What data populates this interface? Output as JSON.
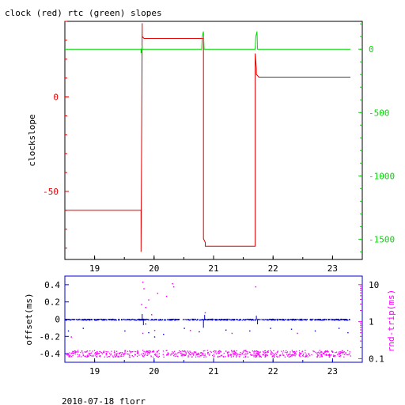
{
  "title": "clock (red) rtc (green) slopes",
  "footer": "2010-07-18 florr",
  "colors": {
    "clock": "#e00000",
    "rtc": "#00dd00",
    "offset": "#0000cc",
    "rndtrip": "#ff00ff",
    "frame": "#000000"
  },
  "chart_data": [
    {
      "type": "line",
      "title": "clock (red) rtc (green) slopes",
      "xlim": [
        18.5,
        23.5
      ],
      "xticks": [
        19,
        20,
        21,
        22,
        23
      ],
      "xticklabels": [
        "19",
        "20",
        "21",
        "22",
        "23"
      ],
      "ylabel": "clockslope",
      "ylim": [
        -86,
        40
      ],
      "yticks": [
        0,
        -50
      ],
      "yticklabels": [
        "0",
        "-50"
      ],
      "y2lim": [
        -1660,
        220
      ],
      "y2ticks": [
        0,
        -500,
        -1000,
        -1500
      ],
      "y2ticklabels": [
        "0",
        "-500",
        "-1000",
        "-1500"
      ],
      "series": [
        {
          "name": "clock",
          "axis": "left",
          "color": "#e00000",
          "x": [
            18.5,
            19.78,
            19.78,
            19.8,
            19.8,
            19.83,
            20.83,
            20.83,
            20.86,
            20.86,
            20.9,
            21.5,
            21.7,
            21.7,
            21.72,
            21.72,
            21.76,
            22.5,
            23.3
          ],
          "y": [
            -60,
            -60,
            -82,
            39,
            32,
            31,
            31,
            -75,
            -77,
            -79,
            -79,
            -79,
            -79,
            23,
            15,
            12,
            10.5,
            10.5,
            10.5
          ]
        },
        {
          "name": "rtc",
          "axis": "right",
          "color": "#00dd00",
          "x": [
            18.5,
            19.78,
            19.78,
            19.8,
            19.8,
            20.8,
            20.81,
            20.83,
            20.84,
            21.7,
            21.71,
            21.73,
            21.74,
            23.3
          ],
          "y": [
            0,
            0,
            -30,
            30,
            0,
            0,
            100,
            140,
            0,
            0,
            100,
            140,
            0,
            0
          ]
        }
      ]
    },
    {
      "type": "scatter",
      "xlim": [
        18.5,
        23.5
      ],
      "xticks": [
        19,
        20,
        21,
        22,
        23
      ],
      "xticklabels": [
        "19",
        "20",
        "21",
        "22",
        "23"
      ],
      "ylabel": "offset(ms)",
      "ylim": [
        -0.5,
        0.5
      ],
      "yticks": [
        0.4,
        0.2,
        0,
        -0.2,
        -0.4
      ],
      "yticklabels": [
        "0.4",
        "0.2",
        "0",
        "-0.2",
        "-0.4"
      ],
      "y2label": "rnd-trip(ms)",
      "y2scale": "log",
      "y2lim": [
        0.08,
        17
      ],
      "y2ticks": [
        10,
        1,
        0.1
      ],
      "y2ticklabels": [
        "10",
        "1",
        "0.1"
      ],
      "series": [
        {
          "name": "offset",
          "axis": "left",
          "color": "#0000cc",
          "x_range": [
            18.5,
            23.3
          ],
          "baseline": 0,
          "spikes": [
            {
              "x": 19.8,
              "y": 0.06
            },
            {
              "x": 19.82,
              "y": -0.07
            },
            {
              "x": 20.83,
              "y": -0.1
            },
            {
              "x": 20.85,
              "y": 0.05
            },
            {
              "x": 21.72,
              "y": 0.04
            },
            {
              "x": 21.74,
              "y": -0.06
            }
          ],
          "outliers": [
            {
              "x": 18.55,
              "y": -0.13
            },
            {
              "x": 18.8,
              "y": -0.1
            },
            {
              "x": 19.5,
              "y": -0.13
            },
            {
              "x": 19.85,
              "y": -0.05
            },
            {
              "x": 19.9,
              "y": -0.15
            },
            {
              "x": 20.0,
              "y": -0.2
            },
            {
              "x": 20.15,
              "y": -0.17
            },
            {
              "x": 20.5,
              "y": -0.1
            },
            {
              "x": 20.75,
              "y": -0.14
            },
            {
              "x": 21.2,
              "y": -0.12
            },
            {
              "x": 21.6,
              "y": -0.13
            },
            {
              "x": 21.95,
              "y": -0.1
            },
            {
              "x": 22.3,
              "y": -0.11
            },
            {
              "x": 22.7,
              "y": -0.13
            },
            {
              "x": 23.1,
              "y": -0.1
            },
            {
              "x": 23.25,
              "y": -0.15
            }
          ]
        },
        {
          "name": "rnd-trip",
          "axis": "right",
          "color": "#ff00ff",
          "x_range": [
            18.5,
            23.3
          ],
          "baseline": 0.14,
          "outliers": [
            {
              "x": 19.78,
              "y": 3
            },
            {
              "x": 19.8,
              "y": 12
            },
            {
              "x": 19.82,
              "y": 8
            },
            {
              "x": 19.85,
              "y": 2.5
            },
            {
              "x": 19.9,
              "y": 4
            },
            {
              "x": 19.95,
              "y": 1.6
            },
            {
              "x": 20.0,
              "y": 0.6
            },
            {
              "x": 20.05,
              "y": 6
            },
            {
              "x": 20.2,
              "y": 5
            },
            {
              "x": 20.3,
              "y": 11
            },
            {
              "x": 20.32,
              "y": 9
            },
            {
              "x": 20.85,
              "y": 1.8
            },
            {
              "x": 21.7,
              "y": 9
            },
            {
              "x": 19.8,
              "y": 0.5
            },
            {
              "x": 20.6,
              "y": 0.6
            },
            {
              "x": 21.3,
              "y": 0.5
            },
            {
              "x": 22.4,
              "y": 0.5
            },
            {
              "x": 18.6,
              "y": 0.4
            }
          ]
        }
      ]
    }
  ]
}
